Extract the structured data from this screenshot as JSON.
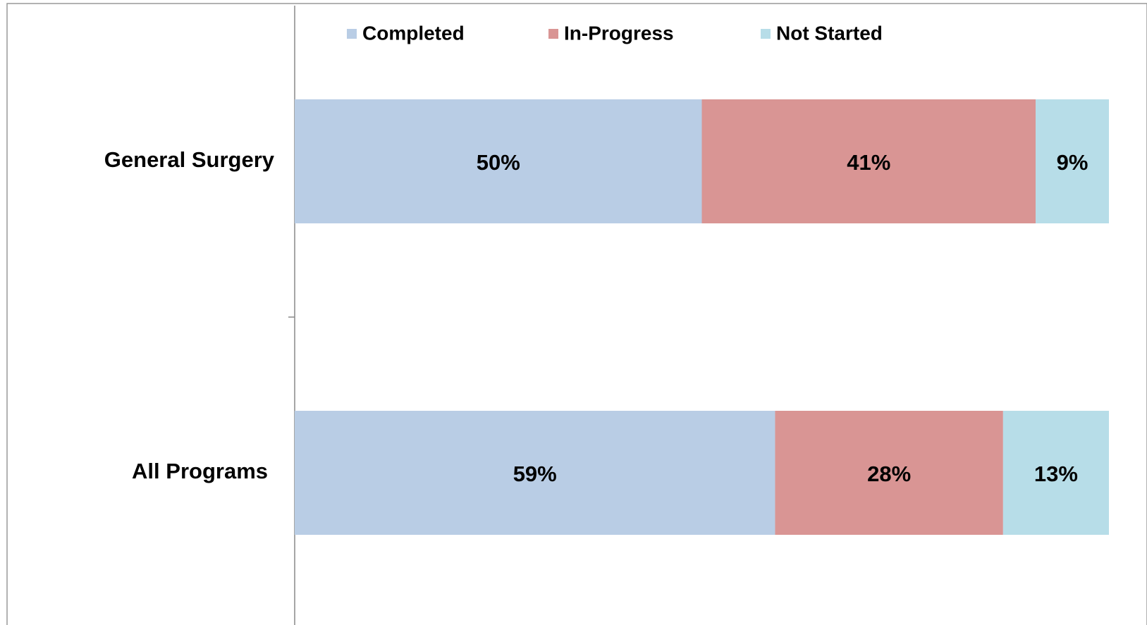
{
  "chart_data": {
    "type": "stacked-bar-horizontal",
    "categories": [
      "General Surgery",
      "All Programs"
    ],
    "series": [
      {
        "name": "Completed",
        "color": "#b9cde5",
        "values": [
          50,
          59
        ],
        "value_labels": [
          "50%",
          "59%"
        ]
      },
      {
        "name": "In-Progress",
        "color": "#d99594",
        "values": [
          41,
          28
        ],
        "value_labels": [
          "41%",
          "28%"
        ]
      },
      {
        "name": "Not Started",
        "color": "#b7dde8",
        "values": [
          9,
          13
        ],
        "value_labels": [
          "9%",
          "13%"
        ]
      }
    ],
    "xlim": [
      0,
      100
    ],
    "legend": "top"
  }
}
